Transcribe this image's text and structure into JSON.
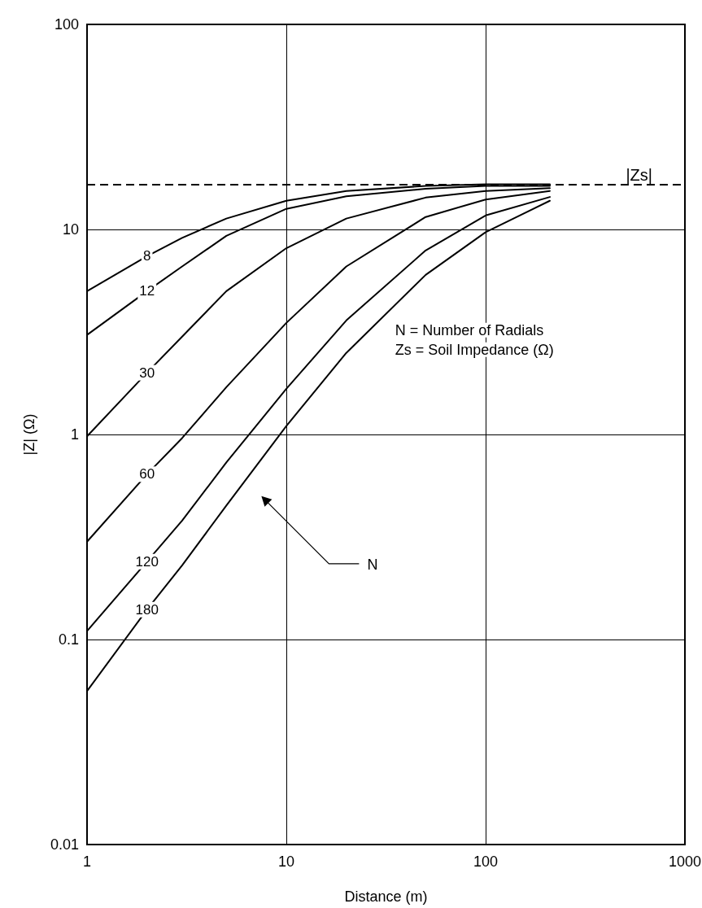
{
  "chart_data": {
    "type": "line",
    "xlabel": "Distance (m)",
    "ylabel": "|Z| (Ω)",
    "log": "xy",
    "xlim": [
      1,
      1000
    ],
    "ylim": [
      0.01,
      100
    ],
    "xticks": [
      1,
      10,
      100,
      1000
    ],
    "yticks": [
      0.01,
      0.1,
      1,
      10,
      100
    ],
    "grid": true,
    "legend": false,
    "marker": "none",
    "line_style": "solid",
    "x": [
      1,
      2,
      3,
      5,
      10,
      20,
      50,
      100,
      210
    ],
    "series": [
      {
        "name": "8",
        "color": "#000000",
        "values": [
          5.0,
          7.4,
          9.1,
          11.3,
          13.8,
          15.4,
          16.3,
          16.6,
          16.6
        ]
      },
      {
        "name": "12",
        "color": "#000000",
        "values": [
          3.06,
          5.0,
          6.6,
          9.3,
          12.6,
          14.5,
          15.8,
          16.3,
          16.3
        ]
      },
      {
        "name": "30",
        "color": "#000000",
        "values": [
          0.98,
          2.0,
          3.0,
          5.0,
          8.1,
          11.3,
          14.3,
          15.4,
          15.9
        ]
      },
      {
        "name": "60",
        "color": "#000000",
        "values": [
          0.3,
          0.64,
          0.96,
          1.7,
          3.5,
          6.6,
          11.5,
          14.0,
          15.4
        ]
      },
      {
        "name": "120",
        "color": "#000000",
        "values": [
          0.11,
          0.24,
          0.38,
          0.73,
          1.67,
          3.6,
          7.9,
          11.7,
          14.4
        ]
      },
      {
        "name": "180",
        "color": "#000000",
        "values": [
          0.056,
          0.14,
          0.23,
          0.45,
          1.1,
          2.5,
          6.0,
          9.7,
          13.8
        ]
      }
    ],
    "ref_lines": [
      {
        "axis": "y",
        "value": 16.6,
        "label": "|Zs|",
        "line_style": "dashed",
        "color": "#000000"
      }
    ],
    "annotations": [
      "N = Number of Radials",
      "Zs = Soil Impedance (Ω)",
      "N"
    ]
  }
}
